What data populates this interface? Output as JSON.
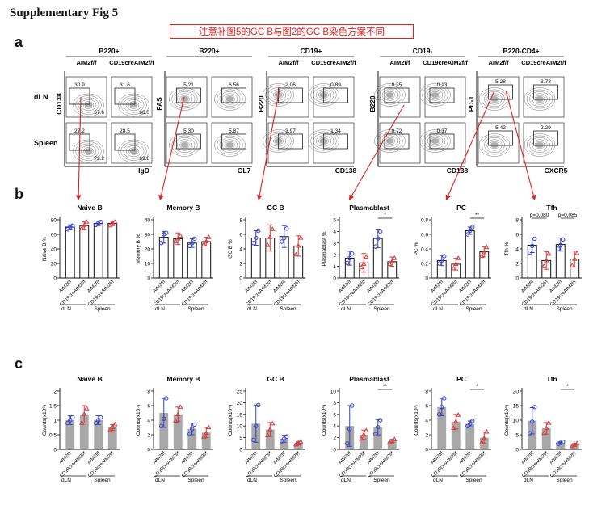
{
  "figure": {
    "title": "Supplementary Fig 5",
    "note": "注意补图5的GC B与图2的GC B染色方案不同",
    "panels": {
      "a": "a",
      "b": "b",
      "c": "c"
    }
  },
  "flow": {
    "row_labels": [
      "dLN",
      "Spleen"
    ],
    "groups": [
      {
        "header": "B220+",
        "sub": [
          "AIM2f/f",
          "CD19creAIM2f/f"
        ],
        "yaxis": "CD138",
        "xaxis": "IgD",
        "gates": [
          [
            "30.9",
            "67.6",
            "31.6",
            "68.0"
          ],
          [
            "27.2",
            "72.2",
            "28.5",
            "69.8"
          ]
        ]
      },
      {
        "header": "B220+",
        "sub": [
          "",
          ""
        ],
        "yaxis": "FAS",
        "xaxis": "GL7",
        "gates": [
          [
            "5.21",
            "",
            "6.56",
            ""
          ],
          [
            "5.30",
            "",
            "5.87",
            ""
          ]
        ]
      },
      {
        "header": "CD19+",
        "sub": [
          "AIM2f/f",
          "CD19creAIM2f/f"
        ],
        "yaxis": "B220",
        "xaxis": "CD138",
        "gates": [
          [
            "2.06",
            "",
            "0.89",
            ""
          ],
          [
            "3.97",
            "",
            "1.34",
            ""
          ]
        ]
      },
      {
        "header": "CD19-",
        "sub": [
          "AIM2f/f",
          "CD19creAIM2f/f"
        ],
        "yaxis": "B220",
        "xaxis": "CD138",
        "gates": [
          [
            "0.35",
            "",
            "0.13",
            ""
          ],
          [
            "0.72",
            "",
            "0.37",
            ""
          ]
        ]
      },
      {
        "header": "B220-CD4+",
        "sub": [
          "AIM2f/f",
          "CD19creAIM2f/f"
        ],
        "yaxis": "PD-1",
        "xaxis": "CXCR5",
        "gates": [
          [
            "5.28",
            "",
            "3.78",
            ""
          ],
          [
            "5.42",
            "",
            "2.29",
            ""
          ]
        ]
      }
    ]
  },
  "chart_data": [
    {
      "panel": "b",
      "type": "bar",
      "title": "Naive B",
      "ylabel": "Naive B %",
      "ylim": [
        0,
        80
      ],
      "yticks": [
        0,
        20,
        40,
        60,
        80
      ],
      "categories": [
        "AIM2f/f",
        "CD19creAIM2f/f",
        "AIM2f/f",
        "CD19creAIM2f/f"
      ],
      "groups": [
        "dLN",
        "Spleen"
      ],
      "values": [
        70,
        72,
        75,
        75
      ],
      "sd": [
        3,
        5,
        3,
        3
      ],
      "points": [
        [
          67,
          70,
          72
        ],
        [
          68,
          72,
          77
        ],
        [
          73,
          75,
          77
        ],
        [
          72,
          75,
          77
        ]
      ],
      "significance": []
    },
    {
      "panel": "b",
      "type": "bar",
      "title": "Memory B",
      "ylabel": "Memory B %",
      "ylim": [
        0,
        40
      ],
      "yticks": [
        0,
        10,
        20,
        30,
        40
      ],
      "categories": [
        "AIM2f/f",
        "CD19creAIM2f/f",
        "AIM2f/f",
        "CD19creAIM2f/f"
      ],
      "groups": [
        "dLN",
        "Spleen"
      ],
      "values": [
        28,
        27,
        24,
        25
      ],
      "sd": [
        4,
        4,
        3,
        3
      ],
      "points": [
        [
          24,
          30,
          31
        ],
        [
          25,
          27,
          29
        ],
        [
          22,
          24,
          27
        ],
        [
          23,
          25,
          28
        ]
      ],
      "significance": []
    },
    {
      "panel": "b",
      "type": "bar",
      "title": "GC B",
      "ylabel": "GC B %",
      "ylim": [
        0,
        8
      ],
      "yticks": [
        0,
        2,
        4,
        6,
        8
      ],
      "categories": [
        "AIM2f/f",
        "CD19creAIM2f/f",
        "AIM2f/f",
        "CD19creAIM2f/f"
      ],
      "groups": [
        "dLN",
        "Spleen"
      ],
      "values": [
        5.5,
        5.5,
        5.7,
        4.4
      ],
      "sd": [
        1.0,
        1.8,
        1.5,
        1.4
      ],
      "points": [
        [
          4.8,
          5.5,
          6.5
        ],
        [
          4.5,
          5.6,
          6.7
        ],
        [
          5.0,
          5.5,
          6.8
        ],
        [
          3.2,
          4.4,
          5.5
        ]
      ],
      "significance": []
    },
    {
      "panel": "b",
      "type": "bar",
      "title": "Plasmablast",
      "ylabel": "Plasmablast %",
      "ylim": [
        0,
        5
      ],
      "yticks": [
        0,
        1,
        2,
        3,
        4,
        5
      ],
      "categories": [
        "AIM2f/f",
        "CD19creAIM2f/f",
        "AIM2f/f",
        "CD19creAIM2f/f"
      ],
      "groups": [
        "dLN",
        "Spleen"
      ],
      "values": [
        1.7,
        1.3,
        3.4,
        1.4
      ],
      "sd": [
        0.6,
        0.8,
        0.8,
        0.4
      ],
      "points": [
        [
          1.3,
          1.7,
          2.1
        ],
        [
          0.9,
          1.2,
          1.8
        ],
        [
          2.7,
          3.4,
          4.0
        ],
        [
          1.2,
          1.4,
          1.7
        ]
      ],
      "significance": [
        {
          "from": 2,
          "to": 3,
          "label": "*"
        }
      ]
    },
    {
      "panel": "b",
      "type": "bar",
      "title": "PC",
      "ylabel": "PC %",
      "ylim": [
        0,
        0.8
      ],
      "yticks": [
        0,
        0.2,
        0.4,
        0.6,
        0.8
      ],
      "categories": [
        "AIM2f/f",
        "CD19creAIM2f/f",
        "AIM2f/f",
        "CD19creAIM2f/f"
      ],
      "groups": [
        "dLN",
        "Spleen"
      ],
      "values": [
        0.24,
        0.19,
        0.65,
        0.36
      ],
      "sd": [
        0.07,
        0.08,
        0.05,
        0.07
      ],
      "points": [
        [
          0.2,
          0.24,
          0.3
        ],
        [
          0.13,
          0.19,
          0.27
        ],
        [
          0.6,
          0.65,
          0.7
        ],
        [
          0.3,
          0.35,
          0.42
        ]
      ],
      "significance": [
        {
          "from": 2,
          "to": 3,
          "label": "**"
        }
      ]
    },
    {
      "panel": "b",
      "type": "bar",
      "title": "Tfh",
      "ylabel": "Tfh %",
      "ylim": [
        0,
        8
      ],
      "yticks": [
        0,
        2,
        4,
        6,
        8
      ],
      "categories": [
        "AIM2f/f",
        "CD19creAIM2f/f",
        "AIM2f/f",
        "CD19creAIM2f/f"
      ],
      "groups": [
        "dLN",
        "Spleen"
      ],
      "values": [
        4.5,
        2.4,
        4.6,
        2.6
      ],
      "sd": [
        1.0,
        1.2,
        0.9,
        1.1
      ],
      "points": [
        [
          3.5,
          4.4,
          5.4
        ],
        [
          1.6,
          2.4,
          3.3
        ],
        [
          4.0,
          4.5,
          5.3
        ],
        [
          1.7,
          2.6,
          3.4
        ]
      ],
      "significance": [
        {
          "from": 0,
          "to": 1,
          "label": "p=0.080"
        },
        {
          "from": 2,
          "to": 3,
          "label": "p=0.085"
        }
      ]
    },
    {
      "panel": "c",
      "type": "bar",
      "title": "Naive B",
      "ylabel": "Counts(x10⁶)",
      "ylim": [
        0,
        2.0
      ],
      "yticks": [
        0,
        0.5,
        1.0,
        1.5,
        2.0
      ],
      "categories": [
        "AIM2f/f",
        "CD19creAIM2f/f",
        "AIM2f/f",
        "CD19creAIM2f/f"
      ],
      "groups": [
        "dLN",
        "Spleen"
      ],
      "values": [
        1.0,
        1.2,
        1.0,
        0.75
      ],
      "sd": [
        0.15,
        0.3,
        0.15,
        0.1
      ],
      "points": [
        [
          0.9,
          1.0,
          1.1
        ],
        [
          0.9,
          1.2,
          1.4
        ],
        [
          0.9,
          1.0,
          1.1
        ],
        [
          0.65,
          0.75,
          0.85
        ]
      ],
      "significance": []
    },
    {
      "panel": "c",
      "type": "bar",
      "title": "Memory B",
      "ylabel": "Counts(x10⁵)",
      "ylim": [
        0,
        8
      ],
      "yticks": [
        0,
        2,
        4,
        6,
        8
      ],
      "categories": [
        "AIM2f/f",
        "CD19creAIM2f/f",
        "AIM2f/f",
        "CD19creAIM2f/f"
      ],
      "groups": [
        "dLN",
        "Spleen"
      ],
      "values": [
        5.0,
        4.8,
        2.8,
        2.3
      ],
      "sd": [
        2.0,
        1.0,
        0.8,
        0.7
      ],
      "points": [
        [
          3.2,
          4.2,
          7.0
        ],
        [
          3.9,
          4.8,
          5.8
        ],
        [
          2.1,
          2.8,
          3.4
        ],
        [
          1.7,
          2.2,
          3.0
        ]
      ],
      "significance": []
    },
    {
      "panel": "c",
      "type": "bar",
      "title": "GC B",
      "ylabel": "Counts(x10⁴)",
      "ylim": [
        0,
        25
      ],
      "yticks": [
        0,
        5,
        10,
        15,
        20,
        25
      ],
      "categories": [
        "AIM2f/f",
        "CD19creAIM2f/f",
        "AIM2f/f",
        "CD19creAIM2f/f"
      ],
      "groups": [
        "dLN",
        "Spleen"
      ],
      "values": [
        11,
        8.5,
        4.5,
        2.6
      ],
      "sd": [
        8,
        3,
        1.5,
        0.8
      ],
      "points": [
        [
          4,
          10,
          19
        ],
        [
          6,
          8.5,
          11
        ],
        [
          3.5,
          4.5,
          5.5
        ],
        [
          2.0,
          2.6,
          3.2
        ]
      ],
      "significance": []
    },
    {
      "panel": "c",
      "type": "bar",
      "title": "Plasmablast",
      "ylabel": "Counts(x10⁴)",
      "ylim": [
        0,
        10
      ],
      "yticks": [
        0,
        2,
        4,
        6,
        8,
        10
      ],
      "categories": [
        "AIM2f/f",
        "CD19creAIM2f/f",
        "AIM2f/f",
        "CD19creAIM2f/f"
      ],
      "groups": [
        "dLN",
        "Spleen"
      ],
      "values": [
        4.0,
        2.5,
        3.8,
        1.4
      ],
      "sd": [
        3.5,
        0.8,
        1.3,
        0.3
      ],
      "points": [
        [
          1.0,
          3.5,
          7.5
        ],
        [
          1.8,
          2.5,
          3.2
        ],
        [
          2.6,
          3.8,
          5.0
        ],
        [
          1.1,
          1.4,
          1.7
        ]
      ],
      "significance": [
        {
          "from": 2,
          "to": 3,
          "label": "**"
        }
      ]
    },
    {
      "panel": "c",
      "type": "bar",
      "title": "PC",
      "ylabel": "Counts(x10³)",
      "ylim": [
        0,
        8
      ],
      "yticks": [
        0,
        2,
        4,
        6,
        8
      ],
      "categories": [
        "AIM2f/f",
        "CD19creAIM2f/f",
        "AIM2f/f",
        "CD19creAIM2f/f"
      ],
      "groups": [
        "dLN",
        "Spleen"
      ],
      "values": [
        5.8,
        3.8,
        3.5,
        1.6
      ],
      "sd": [
        1.2,
        1.0,
        0.4,
        0.8
      ],
      "points": [
        [
          4.8,
          5.8,
          7.0
        ],
        [
          2.9,
          3.8,
          4.7
        ],
        [
          3.2,
          3.5,
          3.9
        ],
        [
          0.9,
          1.5,
          2.4
        ]
      ],
      "significance": [
        {
          "from": 2,
          "to": 3,
          "label": "*"
        }
      ]
    },
    {
      "panel": "c",
      "type": "bar",
      "title": "Tfh",
      "ylabel": "Counts(x10⁴)",
      "ylim": [
        0,
        20
      ],
      "yticks": [
        0,
        5,
        10,
        15,
        20
      ],
      "categories": [
        "AIM2f/f",
        "CD19creAIM2f/f",
        "AIM2f/f",
        "CD19creAIM2f/f"
      ],
      "groups": [
        "dLN",
        "Spleen"
      ],
      "values": [
        9.8,
        7.2,
        2.2,
        1.5
      ],
      "sd": [
        4.5,
        2.0,
        0.3,
        0.5
      ],
      "points": [
        [
          5.5,
          9.5,
          14.5
        ],
        [
          5.5,
          7.2,
          9.0
        ],
        [
          1.9,
          2.2,
          2.5
        ],
        [
          1.0,
          1.5,
          2.0
        ]
      ],
      "significance": [
        {
          "from": 2,
          "to": 3,
          "label": "*"
        }
      ]
    }
  ],
  "style": {
    "control_color": "#3340c8",
    "ko_color": "#d63a3a",
    "bar_color": "#a8a8a8",
    "arrow_color": "#e02020"
  }
}
